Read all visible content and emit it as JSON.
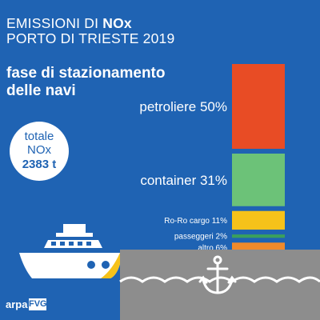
{
  "header": {
    "title_prefix": "EMISSIONI DI ",
    "title_emph": "NOx",
    "title_line2": "PORTO DI TRIESTE 2019",
    "subtitle_line1": "fase di stazionamento",
    "subtitle_line2": "delle navi"
  },
  "total": {
    "label1": "totale",
    "label2": "NOx",
    "value": "2383 t"
  },
  "chart_data": {
    "type": "bar",
    "orientation": "stacked-vertical",
    "unit": "%",
    "categories": [
      "petroliere",
      "container",
      "Ro-Ro cargo",
      "passeggeri",
      "altro"
    ],
    "values": [
      50,
      31,
      11,
      2,
      6
    ],
    "labels": [
      "petroliere 50%",
      "container 31%",
      "Ro-Ro cargo 11%",
      "passeggeri 2%",
      "altro 6%"
    ],
    "colors": [
      "#e84c25",
      "#6cc278",
      "#f6c21a",
      "#3a9f5e",
      "#f08a2b"
    ],
    "label_sizes": [
      "large",
      "large",
      "small",
      "small",
      "small"
    ]
  },
  "logo": {
    "part1": "arpa",
    "part2": "FVG"
  },
  "icons": [
    "ship-icon",
    "anchor-icon"
  ],
  "colors": {
    "background": "#1f63b3",
    "hull": "#ffffff",
    "water": "#8d8d8d",
    "bow_stripe": "#f6c21a"
  }
}
